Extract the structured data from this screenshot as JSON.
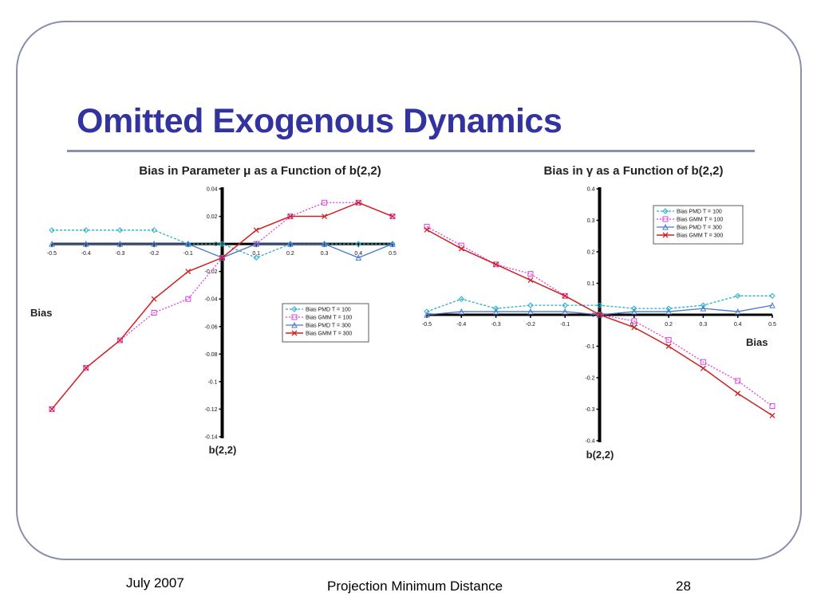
{
  "slide": {
    "title": "Omitted Exogenous Dynamics",
    "footer": {
      "date": "July 2007",
      "center": "Projection Minimum Distance",
      "page": "28"
    }
  },
  "colors": {
    "title": "#3333a0",
    "rule": "#8a8fb0",
    "frame": "#8a8fb0"
  },
  "chart_data": [
    {
      "type": "line",
      "title": "Bias in Parameter μ as a Function of b(2,2)",
      "xlabel": "b(2,2)",
      "ylabel": "Bias",
      "x": [
        -0.5,
        -0.4,
        -0.3,
        -0.2,
        -0.1,
        0,
        0.1,
        0.2,
        0.3,
        0.4,
        0.5
      ],
      "xlim": [
        -0.5,
        0.5
      ],
      "ylim": [
        -0.14,
        0.04
      ],
      "x_ticks": [
        "-0.5",
        "-0.4",
        "-0.3",
        "-0.2",
        "-0.1",
        "0",
        "0.1",
        "0.2",
        "0.3",
        "0.4",
        "0.5"
      ],
      "y_ticks": [
        "0.04",
        "0.02",
        "0",
        "-0.02",
        "-0.04",
        "-0.06",
        "-0.08",
        "-0.1",
        "-0.12",
        "-0.14"
      ],
      "grid": false,
      "legend_position": "lower-right",
      "series": [
        {
          "name": "Bias PMD T = 100",
          "color": "#22b0c8",
          "marker": "diamond",
          "dash": "3,2",
          "width": 1.3,
          "values": [
            0.01,
            0.01,
            0.01,
            0.01,
            0,
            0,
            -0.01,
            0,
            0,
            0,
            0
          ]
        },
        {
          "name": "Bias GMM T = 100",
          "color": "#e040e0",
          "marker": "square",
          "dash": "2,2",
          "width": 1.3,
          "values": [
            -0.12,
            -0.09,
            -0.07,
            -0.05,
            -0.04,
            -0.01,
            0,
            0.02,
            0.03,
            0.03,
            0.02
          ]
        },
        {
          "name": "Bias PMD T = 300",
          "color": "#4a78d0",
          "marker": "triangle",
          "dash": "",
          "width": 1.3,
          "values": [
            0,
            0,
            0,
            0,
            0,
            -0.01,
            0,
            0,
            0,
            -0.01,
            0
          ]
        },
        {
          "name": "Bias GMM T = 300",
          "color": "#d02020",
          "marker": "x",
          "dash": "",
          "width": 1.5,
          "values": [
            -0.12,
            -0.09,
            -0.07,
            -0.04,
            -0.02,
            -0.01,
            0.01,
            0.02,
            0.02,
            0.03,
            0.02
          ]
        }
      ]
    },
    {
      "type": "line",
      "title": "Bias in γ as a Function of b(2,2)",
      "xlabel": "b(2,2)",
      "ylabel": "Bias",
      "x": [
        -0.5,
        -0.4,
        -0.3,
        -0.2,
        -0.1,
        0,
        0.1,
        0.2,
        0.3,
        0.4,
        0.5
      ],
      "xlim": [
        -0.5,
        0.5
      ],
      "ylim": [
        -0.4,
        0.4
      ],
      "x_ticks": [
        "-0.5",
        "-0.4",
        "-0.3",
        "-0.2",
        "-0.1",
        "0",
        "0.1",
        "0.2",
        "0.3",
        "0.4",
        "0.5"
      ],
      "y_ticks": [
        "0.4",
        "0.3",
        "0.2",
        "0.1",
        "0",
        "-0.1",
        "-0.2",
        "-0.3",
        "-0.4"
      ],
      "grid": false,
      "legend_position": "top-right",
      "series": [
        {
          "name": "Bias PMD T = 100",
          "color": "#22b0c8",
          "marker": "diamond",
          "dash": "3,2",
          "width": 1.3,
          "values": [
            0.01,
            0.05,
            0.02,
            0.03,
            0.03,
            0.03,
            0.02,
            0.02,
            0.03,
            0.06,
            0.06
          ]
        },
        {
          "name": "Bias GMM T = 100",
          "color": "#e040e0",
          "marker": "square",
          "dash": "2,2",
          "width": 1.3,
          "values": [
            0.28,
            0.22,
            0.16,
            0.13,
            0.06,
            0,
            -0.02,
            -0.08,
            -0.15,
            -0.21,
            -0.29
          ]
        },
        {
          "name": "Bias PMD T = 300",
          "color": "#4a78d0",
          "marker": "triangle",
          "dash": "",
          "width": 1.3,
          "values": [
            0,
            0.01,
            0.01,
            0.01,
            0.01,
            0,
            0.01,
            0.01,
            0.02,
            0.01,
            0.03
          ]
        },
        {
          "name": "Bias GMM T = 300",
          "color": "#d02020",
          "marker": "x",
          "dash": "",
          "width": 1.5,
          "values": [
            0.27,
            0.21,
            0.16,
            0.11,
            0.06,
            0,
            -0.04,
            -0.1,
            -0.17,
            -0.25,
            -0.32
          ]
        }
      ]
    }
  ]
}
